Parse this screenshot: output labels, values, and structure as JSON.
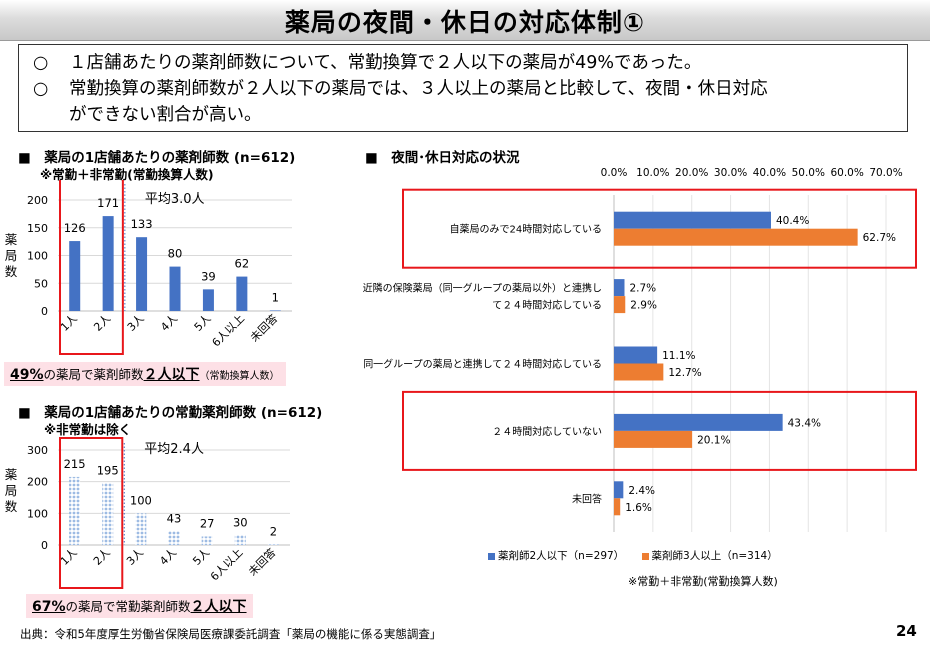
{
  "title": "薬局の夜間・休日の対応体制①",
  "summary": {
    "bullet": "○",
    "line1": "１店舗あたりの薬剤師数について、常勤換算で２人以下の薬局が49%であった。",
    "line2": "常勤換算の薬剤師数が２人以下の薬局では、３人以上の薬局と比較して、夜間・休日対応",
    "line3": "ができない割合が高い。"
  },
  "left_top": {
    "heading": "■　薬局の1店舗あたりの薬剤師数 (n=612)",
    "subheading": "※常勤＋非常勤(常勤換算人数)",
    "ylabel": [
      "薬",
      "局",
      "数"
    ],
    "average": "平均3.0人",
    "note": {
      "pct": "49%",
      "mid": "の薬局で薬剤師数",
      "bold": "２人以下",
      "small": "（常勤換算人数）"
    }
  },
  "left_bottom": {
    "heading": "■　薬局の1店舗あたりの常勤薬剤師数 (n=612)",
    "subheading": "※非常勤は除く",
    "ylabel": [
      "薬",
      "局",
      "数"
    ],
    "average": "平均2.4人",
    "note": {
      "pct": "67%",
      "mid": "の薬局で常勤薬剤師数",
      "bold": "２人以下"
    }
  },
  "right": {
    "heading": "■　夜間･休日対応の状況",
    "legend_note": "※常勤＋非常勤(常勤換算人数)"
  },
  "source": "出典：令和5年度厚生労働省保険局医療課委託調査「薬局の機能に係る実態調査」",
  "page_number": "24",
  "colors": {
    "blue": "#4472c4",
    "orange": "#ed7d31",
    "highlight": "#e8171b",
    "dotted_fill": "#9dbbe3"
  },
  "chart_data": [
    {
      "type": "bar",
      "categories": [
        "1人",
        "2人",
        "3人",
        "4人",
        "5人",
        "6人以上",
        "未回答"
      ],
      "values": [
        126,
        171,
        133,
        80,
        39,
        62,
        1
      ],
      "ylim": [
        0,
        200
      ],
      "yticks": [
        "0",
        "50",
        "100",
        "150",
        "200"
      ],
      "grid": true
    },
    {
      "type": "bar",
      "categories": [
        "1人",
        "2人",
        "3人",
        "4人",
        "5人",
        "6人以上",
        "未回答"
      ],
      "values": [
        215,
        195,
        100,
        43,
        27,
        30,
        2
      ],
      "ylim": [
        0,
        300
      ],
      "yticks": [
        "0",
        "100",
        "200",
        "300"
      ],
      "grid": true
    },
    {
      "type": "bar",
      "orientation": "horizontal",
      "categories": [
        [
          "自薬局のみで24時間対応している"
        ],
        [
          "近隣の保険薬局（同一グループの薬局以外）と連携し",
          "て２４時間対応している"
        ],
        [
          "同一グループの薬局と連携して２４時間対応している"
        ],
        [
          "２４時間対応していない"
        ],
        [
          "未回答"
        ]
      ],
      "series": [
        {
          "name": "薬剤師2人以下（n=297）",
          "values": [
            40.4,
            2.7,
            11.1,
            43.4,
            2.4
          ],
          "labels": [
            "40.4%",
            "2.7%",
            "11.1%",
            "43.4%",
            "2.4%"
          ]
        },
        {
          "name": "薬剤師3人以上（n=314）",
          "values": [
            62.7,
            2.9,
            12.7,
            20.1,
            1.6
          ],
          "labels": [
            "62.7%",
            "2.9%",
            "12.7%",
            "20.1%",
            "1.6%"
          ]
        }
      ],
      "xlim": [
        0,
        70
      ],
      "xticks": [
        "0.0%",
        "10.0%",
        "20.0%",
        "30.0%",
        "40.0%",
        "50.0%",
        "60.0%",
        "70.0%"
      ],
      "legend": "bottom"
    }
  ]
}
